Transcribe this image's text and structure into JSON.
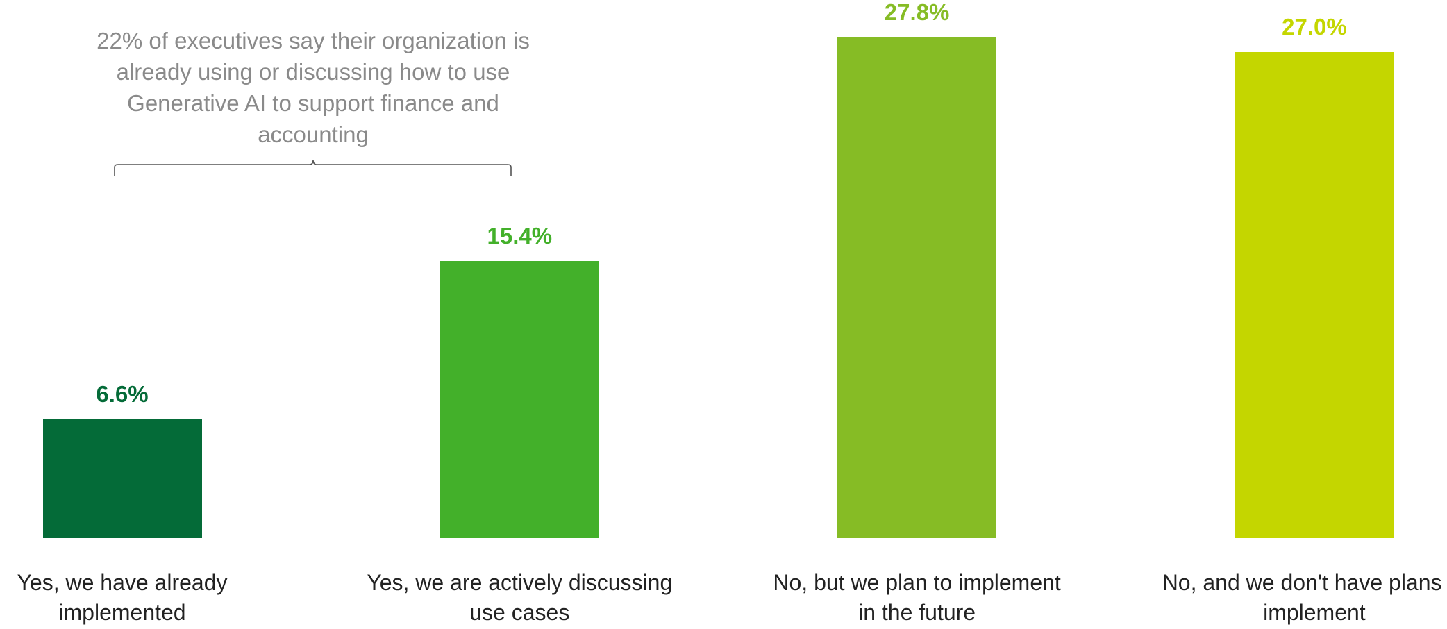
{
  "chart_data": {
    "type": "bar",
    "annotation": "22% of executives say their organization is already using or discussing how to use Generative AI to support finance and accounting",
    "categories": [
      "Yes, we have already implemented",
      "Yes, we are actively discussing use cases",
      "No, but we plan to implement in the future",
      "No, and we don't have plans to implement"
    ],
    "values": [
      6.6,
      15.4,
      27.8,
      27.0
    ],
    "value_labels": [
      "6.6%",
      "15.4%",
      "27.8%",
      "27.0%"
    ],
    "colors": [
      "#046b38",
      "#43b02a",
      "#86bc25",
      "#c4d600"
    ]
  }
}
